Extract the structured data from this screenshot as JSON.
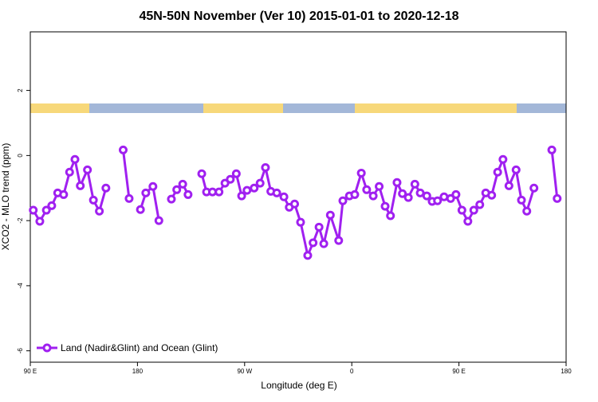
{
  "chart_data": {
    "type": "line",
    "title": "45N-50N November (Ver 10)   2015-01-01 to 2020-12-18",
    "x_label": "Longitude (deg E)",
    "y_label": "XCO2 - MLO trend (ppm)",
    "xlim": [
      90,
      540
    ],
    "ylim": [
      -6.35,
      3.8
    ],
    "xticks": [
      {
        "value": 90,
        "label": "90 E"
      },
      {
        "value": 180,
        "label": "180"
      },
      {
        "value": 270,
        "label": "90 W"
      },
      {
        "value": 360,
        "label": "0"
      },
      {
        "value": 450,
        "label": "90 E"
      },
      {
        "value": 540,
        "label": "180"
      }
    ],
    "yticks": [
      2,
      0,
      -2,
      -4,
      -6
    ],
    "legend_position": "bottom-left",
    "x": [
      92.5,
      98,
      103.5,
      108,
      113,
      118,
      123,
      127.5,
      132,
      138,
      143,
      148,
      153.5,
      161,
      168,
      173,
      177.5,
      182.5,
      187,
      193,
      198,
      203,
      208.5,
      213,
      218,
      222.5,
      228,
      234,
      238,
      243,
      248.5,
      253.5,
      258,
      263,
      267.5,
      272,
      278,
      283,
      287.5,
      292,
      297,
      303,
      307.5,
      312,
      317,
      323,
      327.5,
      332.5,
      336.5,
      342,
      349,
      352.5,
      358,
      362.5,
      368,
      372.5,
      378,
      383,
      388,
      392.5,
      398,
      402.5,
      407.5,
      413,
      417.5,
      423,
      427.5,
      432,
      437.5,
      443,
      447.5,
      452.5,
      457.5,
      462.5,
      467.5,
      472.5,
      477.5,
      482.5,
      487,
      492,
      498,
      502.5,
      507,
      513,
      520,
      528,
      532.5
    ],
    "series": [
      {
        "name": "Land (Nadir&Glint) and Ocean (Glint)",
        "color": "#a020f0",
        "values": [
          -1.68,
          -2.02,
          -1.68,
          -1.54,
          -1.15,
          -1.2,
          -0.51,
          -0.12,
          -0.93,
          -0.44,
          -1.37,
          -1.71,
          -1.0,
          null,
          0.17,
          -1.32,
          null,
          -1.66,
          -1.15,
          -0.95,
          -2.0,
          null,
          -1.34,
          -1.05,
          -0.88,
          -1.2,
          null,
          -0.56,
          -1.12,
          -1.12,
          -1.12,
          -0.85,
          -0.73,
          -0.56,
          -1.24,
          -1.07,
          -1.0,
          -0.85,
          -0.37,
          -1.1,
          -1.15,
          -1.27,
          -1.59,
          -1.49,
          -2.05,
          -3.07,
          -2.68,
          -2.2,
          -2.71,
          -1.83,
          -2.61,
          -1.39,
          -1.24,
          -1.2,
          -0.54,
          -1.05,
          -1.24,
          -0.95,
          -1.56,
          -1.85,
          -0.83,
          -1.17,
          -1.29,
          -0.88,
          -1.15,
          -1.24,
          -1.41,
          -1.39,
          -1.27,
          -1.32,
          -1.2,
          -1.68,
          -2.02,
          -1.68,
          -1.51,
          -1.15,
          -1.22,
          -0.51,
          -0.12,
          -0.93,
          -0.44,
          -1.37,
          -1.71,
          -1.0,
          null,
          0.17,
          -1.32
        ]
      }
    ]
  }
}
